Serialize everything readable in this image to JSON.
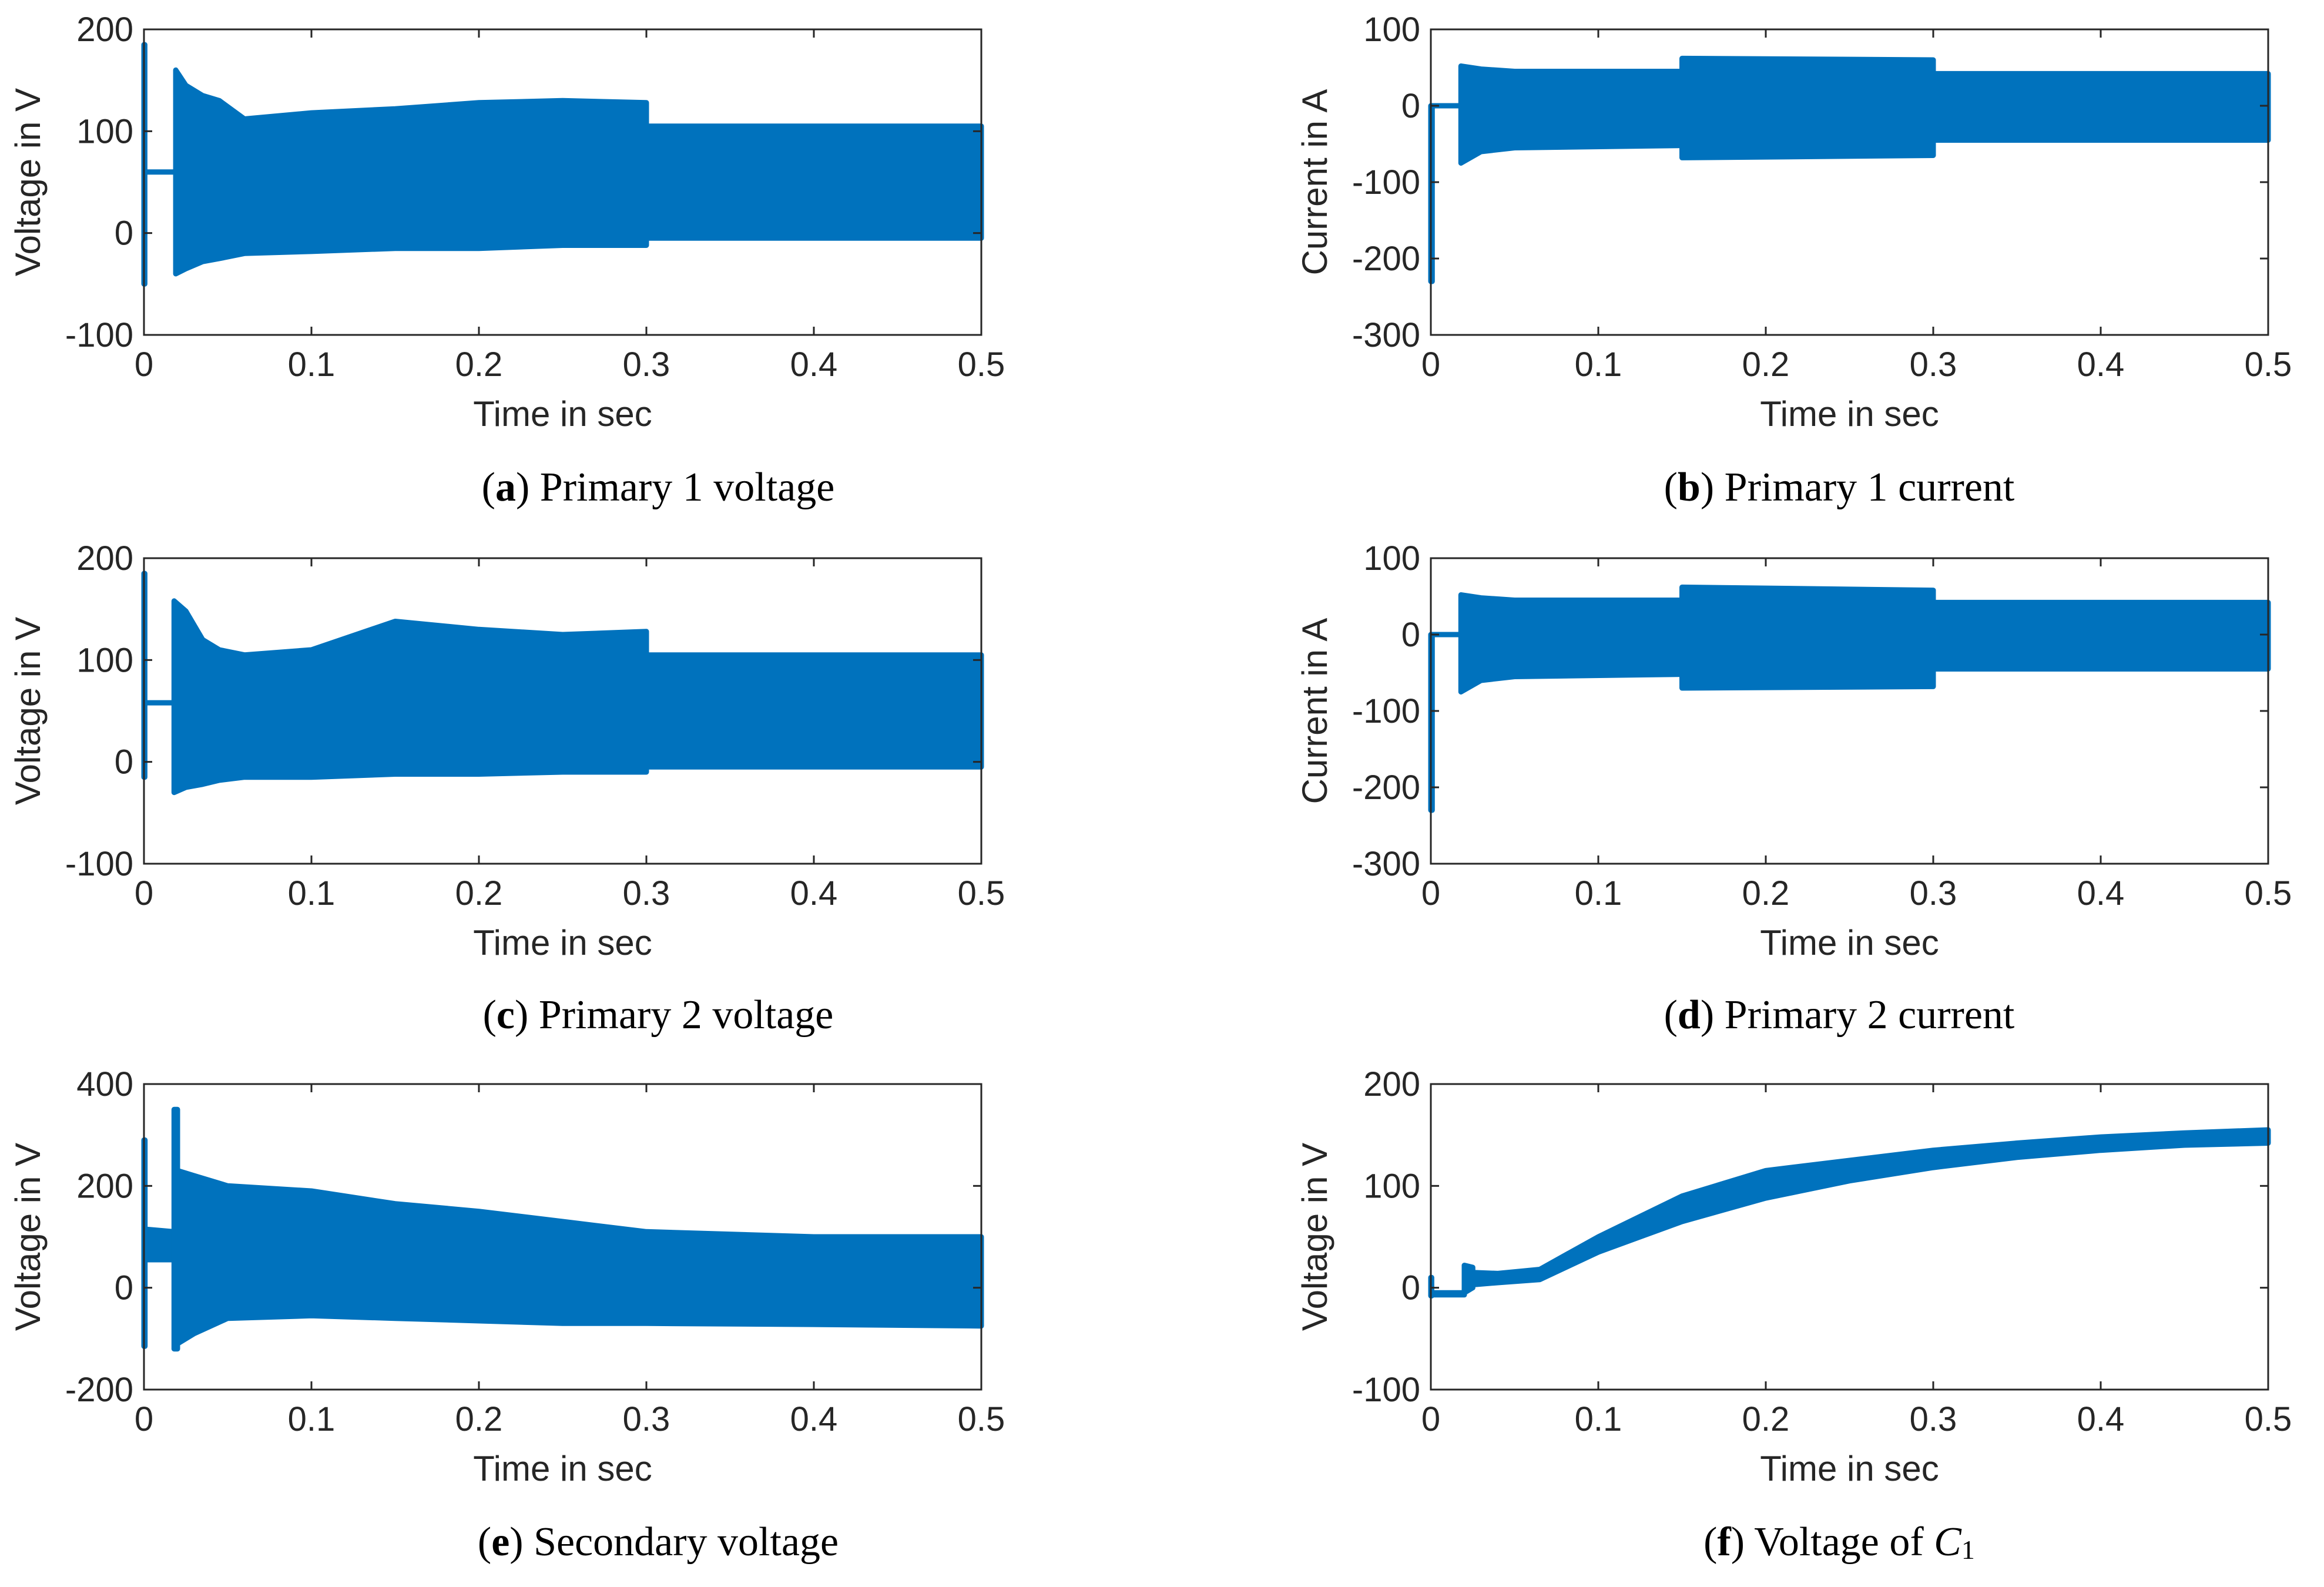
{
  "figure": {
    "panels": [
      {
        "id": "a",
        "caption": {
          "letter": "a",
          "text": "Primary 1 voltage"
        },
        "chart_data": {
          "type": "line",
          "title": "",
          "xlabel": "Time in sec",
          "ylabel": "Voltage in V",
          "xlim": [
            0,
            0.5
          ],
          "ylim": [
            -100,
            200
          ],
          "xticks": [
            0,
            0.1,
            0.2,
            0.3,
            0.4,
            0.5
          ],
          "xtick_labels": [
            "0",
            "0.1",
            "0.2",
            "0.3",
            "0.4",
            "0.5"
          ],
          "yticks": [
            -100,
            0,
            100,
            200
          ],
          "ytick_labels": [
            "-100",
            "0",
            "100",
            "200"
          ],
          "line_color": "#0072BD",
          "segments": [
            {
              "x": [
                0,
                0.0005
              ],
              "lower": [
                -50,
                -50
              ],
              "upper": [
                185,
                185
              ]
            },
            {
              "x": [
                0.0005,
                0.019
              ],
              "lower": [
                60,
                60
              ],
              "upper": [
                60,
                60
              ]
            },
            {
              "x": [
                0.019,
                0.025,
                0.035,
                0.045,
                0.06,
                0.1,
                0.15,
                0.2,
                0.25,
                0.3
              ],
              "lower": [
                -40,
                -35,
                -28,
                -25,
                -20,
                -18,
                -15,
                -15,
                -12,
                -12
              ],
              "upper": [
                160,
                145,
                135,
                130,
                112,
                118,
                122,
                128,
                130,
                128
              ]
            },
            {
              "x": [
                0.3,
                0.5
              ],
              "lower": [
                -5,
                -5
              ],
              "upper": [
                105,
                105
              ]
            }
          ]
        }
      },
      {
        "id": "b",
        "caption": {
          "letter": "b",
          "text": "Primary 1 current"
        },
        "chart_data": {
          "type": "line",
          "title": "",
          "xlabel": "Time in sec",
          "ylabel": "Current in A",
          "xlim": [
            0,
            0.5
          ],
          "ylim": [
            -300,
            100
          ],
          "xticks": [
            0,
            0.1,
            0.2,
            0.3,
            0.4,
            0.5
          ],
          "xtick_labels": [
            "0",
            "0.1",
            "0.2",
            "0.3",
            "0.4",
            "0.5"
          ],
          "yticks": [
            -300,
            -200,
            -100,
            0,
            100
          ],
          "ytick_labels": [
            "-300",
            "-200",
            "-100",
            "0",
            "100"
          ],
          "line_color": "#0072BD",
          "segments": [
            {
              "x": [
                0,
                0.0008
              ],
              "lower": [
                -230,
                -230
              ],
              "upper": [
                0,
                0
              ]
            },
            {
              "x": [
                0.0008,
                0.018
              ],
              "lower": [
                0,
                0
              ],
              "upper": [
                0,
                0
              ]
            },
            {
              "x": [
                0.018,
                0.03,
                0.05,
                0.15
              ],
              "lower": [
                -75,
                -60,
                -55,
                -52
              ],
              "upper": [
                52,
                48,
                45,
                45
              ]
            },
            {
              "x": [
                0.15,
                0.3
              ],
              "lower": [
                -68,
                -65
              ],
              "upper": [
                62,
                60
              ]
            },
            {
              "x": [
                0.3,
                0.5
              ],
              "lower": [
                -45,
                -45
              ],
              "upper": [
                42,
                42
              ]
            }
          ]
        }
      },
      {
        "id": "c",
        "caption": {
          "letter": "c",
          "text": "Primary 2 voltage"
        },
        "chart_data": {
          "type": "line",
          "title": "",
          "xlabel": "Time in sec",
          "ylabel": "Voltage in V",
          "xlim": [
            0,
            0.5
          ],
          "ylim": [
            -100,
            200
          ],
          "xticks": [
            0,
            0.1,
            0.2,
            0.3,
            0.4,
            0.5
          ],
          "xtick_labels": [
            "0",
            "0.1",
            "0.2",
            "0.3",
            "0.4",
            "0.5"
          ],
          "yticks": [
            -100,
            0,
            100,
            200
          ],
          "ytick_labels": [
            "-100",
            "0",
            "100",
            "200"
          ],
          "line_color": "#0072BD",
          "segments": [
            {
              "x": [
                0,
                0.0005
              ],
              "lower": [
                -15,
                -15
              ],
              "upper": [
                185,
                185
              ]
            },
            {
              "x": [
                0.0005,
                0.018
              ],
              "lower": [
                58,
                58
              ],
              "upper": [
                58,
                58
              ]
            },
            {
              "x": [
                0.018,
                0.025,
                0.035,
                0.045,
                0.06,
                0.1,
                0.15,
                0.2,
                0.25,
                0.3
              ],
              "lower": [
                -30,
                -25,
                -22,
                -18,
                -15,
                -15,
                -12,
                -12,
                -10,
                -10
              ],
              "upper": [
                158,
                148,
                120,
                110,
                105,
                110,
                138,
                130,
                125,
                128
              ]
            },
            {
              "x": [
                0.3,
                0.5
              ],
              "lower": [
                -5,
                -5
              ],
              "upper": [
                105,
                105
              ]
            }
          ]
        }
      },
      {
        "id": "d",
        "caption": {
          "letter": "d",
          "text": "Primary 2 current"
        },
        "chart_data": {
          "type": "line",
          "title": "",
          "xlabel": "Time in sec",
          "ylabel": "Current in A",
          "xlim": [
            0,
            0.5
          ],
          "ylim": [
            -300,
            100
          ],
          "xticks": [
            0,
            0.1,
            0.2,
            0.3,
            0.4,
            0.5
          ],
          "xtick_labels": [
            "0",
            "0.1",
            "0.2",
            "0.3",
            "0.4",
            "0.5"
          ],
          "yticks": [
            -300,
            -200,
            -100,
            0,
            100
          ],
          "ytick_labels": [
            "-300",
            "-200",
            "-100",
            "0",
            "100"
          ],
          "line_color": "#0072BD",
          "segments": [
            {
              "x": [
                0,
                0.0008
              ],
              "lower": [
                -230,
                -230
              ],
              "upper": [
                0,
                0
              ]
            },
            {
              "x": [
                0.0008,
                0.018
              ],
              "lower": [
                0,
                0
              ],
              "upper": [
                0,
                0
              ]
            },
            {
              "x": [
                0.018,
                0.03,
                0.05,
                0.15
              ],
              "lower": [
                -75,
                -60,
                -55,
                -52
              ],
              "upper": [
                52,
                48,
                45,
                45
              ]
            },
            {
              "x": [
                0.15,
                0.3
              ],
              "lower": [
                -70,
                -68
              ],
              "upper": [
                62,
                58
              ]
            },
            {
              "x": [
                0.3,
                0.5
              ],
              "lower": [
                -45,
                -45
              ],
              "upper": [
                42,
                42
              ]
            }
          ]
        }
      },
      {
        "id": "e",
        "caption": {
          "letter": "e",
          "text": "Secondary voltage"
        },
        "chart_data": {
          "type": "line",
          "title": "",
          "xlabel": "Time in sec",
          "ylabel": "Voltage in V",
          "xlim": [
            0,
            0.5
          ],
          "ylim": [
            -200,
            400
          ],
          "xticks": [
            0,
            0.1,
            0.2,
            0.3,
            0.4,
            0.5
          ],
          "xtick_labels": [
            "0",
            "0.1",
            "0.2",
            "0.3",
            "0.4",
            "0.5"
          ],
          "yticks": [
            -200,
            0,
            200,
            400
          ],
          "ytick_labels": [
            "-200",
            "0",
            "200",
            "400"
          ],
          "line_color": "#0072BD",
          "segments": [
            {
              "x": [
                0,
                0.0006
              ],
              "lower": [
                -115,
                -115
              ],
              "upper": [
                290,
                290
              ]
            },
            {
              "x": [
                0.0006,
                0.018
              ],
              "lower": [
                55,
                55
              ],
              "upper": [
                115,
                110
              ]
            },
            {
              "x": [
                0.018,
                0.02
              ],
              "lower": [
                -120,
                -120
              ],
              "upper": [
                350,
                350
              ]
            },
            {
              "x": [
                0.02,
                0.03,
                0.05,
                0.1,
                0.15,
                0.2,
                0.25,
                0.3,
                0.4,
                0.5
              ],
              "lower": [
                -110,
                -90,
                -60,
                -55,
                -60,
                -65,
                -70,
                -70,
                -72,
                -75
              ],
              "upper": [
                230,
                220,
                200,
                190,
                165,
                150,
                130,
                110,
                100,
                100
              ]
            }
          ]
        }
      },
      {
        "id": "f",
        "caption": {
          "letter": "f",
          "text": "Voltage of ",
          "symbol": "C",
          "subscript": "1"
        },
        "chart_data": {
          "type": "line",
          "title": "",
          "xlabel": "Time in sec",
          "ylabel": "Voltage in V",
          "xlim": [
            0,
            0.5
          ],
          "ylim": [
            -100,
            200
          ],
          "xticks": [
            0,
            0.1,
            0.2,
            0.3,
            0.4,
            0.5
          ],
          "xtick_labels": [
            "0",
            "0.1",
            "0.2",
            "0.3",
            "0.4",
            "0.5"
          ],
          "yticks": [
            -100,
            0,
            100,
            200
          ],
          "ytick_labels": [
            "-100",
            "0",
            "100",
            "200"
          ],
          "line_color": "#0072BD",
          "segments": [
            {
              "x": [
                0,
                0.0005
              ],
              "lower": [
                -8,
                -8
              ],
              "upper": [
                10,
                10
              ]
            },
            {
              "x": [
                0.0005,
                0.02
              ],
              "lower": [
                -7,
                -7
              ],
              "upper": [
                -5,
                -5
              ]
            },
            {
              "x": [
                0.02,
                0.025
              ],
              "lower": [
                -5,
                0
              ],
              "upper": [
                22,
                20
              ]
            },
            {
              "x": [
                0.025,
                0.04,
                0.065,
                0.1,
                0.15,
                0.2,
                0.25,
                0.3,
                0.35,
                0.4,
                0.45,
                0.5
              ],
              "lower": [
                3,
                5,
                8,
                35,
                65,
                88,
                105,
                118,
                128,
                135,
                140,
                142
              ],
              "upper": [
                15,
                14,
                18,
                50,
                90,
                115,
                125,
                135,
                142,
                148,
                152,
                155
              ]
            }
          ]
        }
      }
    ]
  }
}
